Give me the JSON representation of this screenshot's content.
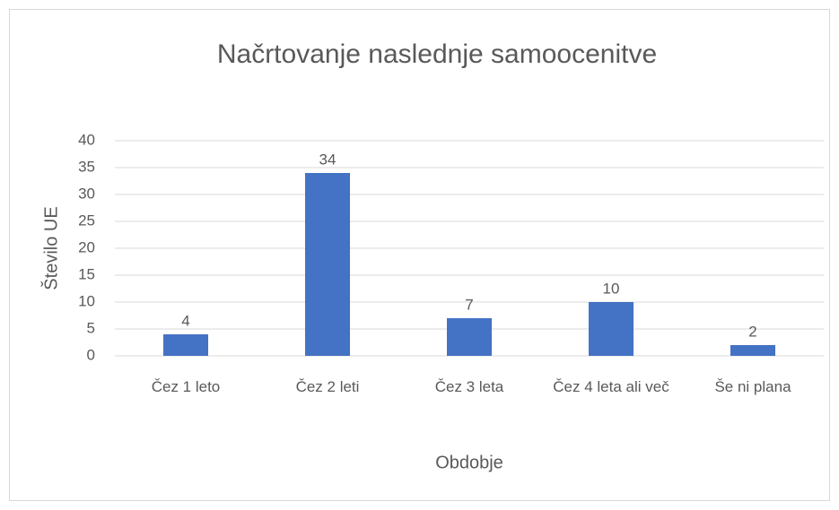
{
  "chart_data": {
    "type": "bar",
    "title": "Načrtovanje naslednje samoocenitve",
    "x_label": "Obdobje",
    "y_label": "Število UE",
    "categories": [
      "Čez 1 leto",
      "Čez 2 leti",
      "Čez 3 leta",
      "Čez 4 leta ali več",
      "Še ni plana"
    ],
    "values": [
      4,
      34,
      7,
      10,
      2
    ],
    "color": "#4472c4",
    "ylim": [
      0,
      40
    ],
    "yticks": [
      0,
      5,
      10,
      15,
      20,
      25,
      30,
      35,
      40
    ],
    "grid": true
  }
}
